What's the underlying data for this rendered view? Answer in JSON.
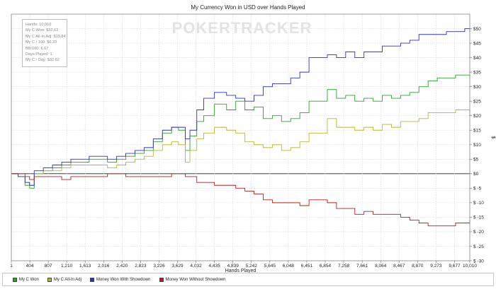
{
  "chart_data": {
    "type": "line",
    "title": "My Currency Won in USD over Hands Played",
    "xlabel": "Hands Played",
    "ylabel": "$",
    "watermark": "POKERTRACKER",
    "xlim": [
      1,
      10010
    ],
    "ylim": [
      -30,
      55
    ],
    "x_ticks": [
      "1",
      "404",
      "807",
      "1,210",
      "1,613",
      "2,016",
      "2,420",
      "2,823",
      "3,226",
      "3,629",
      "4,032",
      "4,435",
      "4,839",
      "5,242",
      "5,645",
      "6,048",
      "6,451",
      "6,854",
      "7,258",
      "7,661",
      "8,064",
      "8,467",
      "8,870",
      "9,273",
      "9,677",
      "10,010"
    ],
    "x_tick_values": [
      1,
      404,
      807,
      1210,
      1613,
      2016,
      2420,
      2823,
      3226,
      3629,
      4032,
      4435,
      4839,
      5242,
      5645,
      6048,
      6451,
      6854,
      7258,
      7661,
      8064,
      8467,
      8870,
      9273,
      9677,
      10010
    ],
    "y_ticks": [
      "$50",
      "$45",
      "$40",
      "$35",
      "$30",
      "$25",
      "$20",
      "$15",
      "$10",
      "$5",
      "$0",
      "$ -5",
      "$ -10",
      "$ -15",
      "$ -20",
      "$ -25",
      "$ -30"
    ],
    "y_tick_values": [
      50,
      45,
      40,
      35,
      30,
      25,
      20,
      15,
      10,
      5,
      0,
      -5,
      -10,
      -15,
      -20,
      -25,
      -30
    ],
    "grid": true,
    "legend_position": "bottom",
    "stats": [
      "Hands: 10,010",
      "My C Won: $32.62",
      "My C All-In Adj: $19.84",
      "My C / 100: $0.33",
      "BB/100: 6.67",
      "Days Played: 1",
      "My C / Day: $32.62"
    ],
    "series": [
      {
        "name": "My C Won",
        "color": "#2aa22a",
        "x": [
          1,
          150,
          300,
          400,
          500,
          700,
          900,
          1100,
          1300,
          1500,
          1700,
          1900,
          2100,
          2300,
          2500,
          2700,
          2900,
          3100,
          3300,
          3500,
          3650,
          3800,
          3900,
          4050,
          4200,
          4435,
          4700,
          4900,
          5100,
          5300,
          5500,
          5700,
          5900,
          6100,
          6300,
          6500,
          6700,
          6900,
          7100,
          7300,
          7500,
          7700,
          7900,
          8100,
          8300,
          8500,
          8700,
          8900,
          9100,
          9300,
          9500,
          9700,
          9900,
          10010
        ],
        "values": [
          0,
          -1,
          -4,
          -5,
          0,
          1,
          2,
          3,
          4,
          4,
          5,
          5,
          4,
          5,
          6,
          7,
          8,
          11,
          14,
          16,
          15,
          8,
          13,
          18,
          20,
          24,
          22,
          25,
          22,
          23,
          19,
          20,
          18,
          19,
          21,
          25,
          25,
          29,
          26,
          27,
          25,
          26,
          25,
          27,
          26,
          27,
          28,
          30,
          32,
          33,
          33,
          34,
          34,
          32.62
        ]
      },
      {
        "name": "My C All-In Adj",
        "color": "#b8b830",
        "x": [
          1,
          150,
          300,
          400,
          500,
          700,
          900,
          1100,
          1300,
          1500,
          1700,
          1900,
          2100,
          2300,
          2500,
          2700,
          2900,
          3100,
          3300,
          3500,
          3650,
          3800,
          3900,
          4050,
          4200,
          4435,
          4700,
          4900,
          5100,
          5300,
          5500,
          5700,
          5900,
          6100,
          6300,
          6500,
          6700,
          6900,
          7100,
          7300,
          7500,
          7700,
          7900,
          8100,
          8300,
          8500,
          8700,
          8900,
          9100,
          9300,
          9500,
          9700,
          9900,
          10010
        ],
        "values": [
          0,
          -1,
          -3,
          -4,
          0,
          1,
          1,
          2,
          3,
          3,
          3,
          3,
          2,
          3,
          4,
          5,
          6,
          8,
          10,
          11,
          10,
          4,
          8,
          12,
          14,
          16,
          15,
          14,
          11,
          10,
          9,
          10,
          8,
          9,
          11,
          14,
          14,
          19,
          16,
          16,
          15,
          16,
          15,
          17,
          16,
          18,
          18,
          19,
          21,
          21,
          21,
          22,
          22,
          19.84
        ]
      },
      {
        "name": "Money Won With Showdown",
        "color": "#3030c0",
        "x": [
          1,
          150,
          300,
          400,
          500,
          700,
          900,
          1100,
          1300,
          1500,
          1700,
          1900,
          2100,
          2300,
          2500,
          2700,
          2900,
          3100,
          3300,
          3500,
          3650,
          3800,
          3900,
          4050,
          4200,
          4435,
          4700,
          4900,
          5100,
          5300,
          5500,
          5700,
          5900,
          6100,
          6300,
          6500,
          6700,
          6900,
          7100,
          7300,
          7500,
          7700,
          7900,
          8100,
          8300,
          8500,
          8700,
          8900,
          9100,
          9300,
          9500,
          9700,
          9900,
          10010
        ],
        "values": [
          0,
          -1,
          -3,
          -4,
          1,
          2,
          3,
          4,
          5,
          5,
          6,
          6,
          5,
          6,
          7,
          8,
          9,
          12,
          15,
          16,
          16,
          12,
          15,
          22,
          26,
          28,
          27,
          26,
          25,
          27,
          30,
          31,
          31,
          33,
          35,
          40,
          40,
          41,
          40,
          42,
          40,
          42,
          42,
          44,
          44,
          45,
          46,
          48,
          48,
          48,
          49,
          49,
          50,
          49
        ]
      },
      {
        "name": "Money Won Without Showdown",
        "color": "#b02020",
        "x": [
          1,
          150,
          300,
          400,
          500,
          700,
          900,
          1100,
          1300,
          1500,
          1700,
          1900,
          2100,
          2300,
          2500,
          2700,
          2900,
          3100,
          3300,
          3500,
          3650,
          3800,
          3900,
          4050,
          4200,
          4435,
          4700,
          4900,
          5100,
          5300,
          5500,
          5700,
          5900,
          6100,
          6300,
          6500,
          6700,
          6900,
          7100,
          7300,
          7500,
          7700,
          7900,
          8100,
          8300,
          8500,
          8700,
          8900,
          9100,
          9300,
          9500,
          9700,
          9900,
          10010
        ],
        "values": [
          0,
          0,
          -1,
          -2,
          -1,
          -1,
          -1,
          -2,
          -1,
          -1,
          -1,
          -1,
          0,
          0,
          -1,
          -1,
          -1,
          -1,
          -1,
          0,
          0,
          -1,
          -1,
          -3,
          -3,
          -4,
          -4,
          -5,
          -6,
          -7,
          -9,
          -10,
          -10,
          -10,
          -11,
          -9,
          -9,
          -10,
          -12,
          -12,
          -14,
          -13,
          -14,
          -14,
          -14,
          -15,
          -16,
          -17,
          -18,
          -18,
          -18,
          -17,
          -17,
          -16
        ]
      }
    ]
  }
}
